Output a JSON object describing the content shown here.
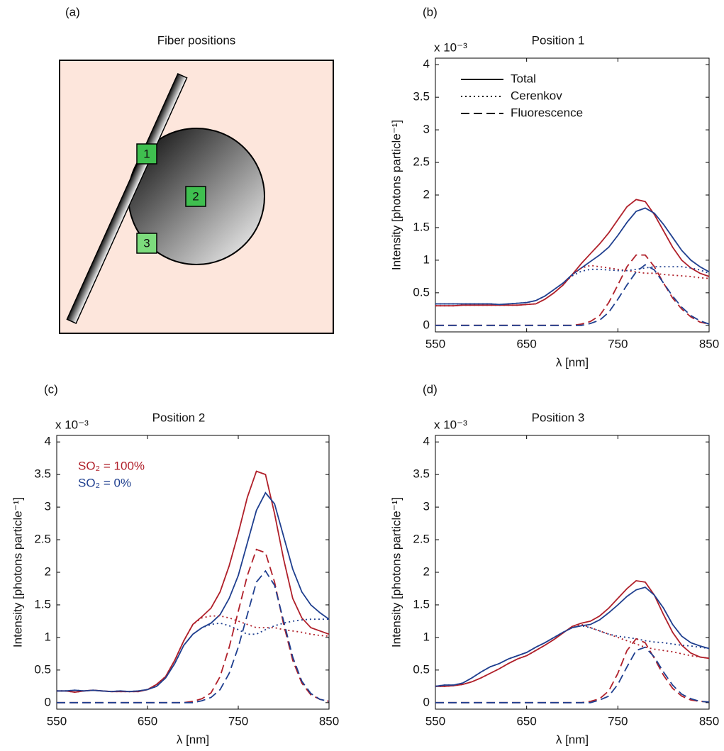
{
  "diagram": {
    "label": "(a)",
    "title": "Fiber positions",
    "markers": [
      "1",
      "2",
      "3"
    ]
  },
  "chart_data": [
    {
      "type": "line",
      "panel_label": "(b)",
      "title": "Position 1",
      "xlabel": "λ [nm]",
      "ylabel": "Intensity [photons particle⁻¹]",
      "y_multiplier": "x 10⁻³",
      "xlim": [
        550,
        850
      ],
      "xticks": [
        550,
        650,
        750,
        850
      ],
      "ylim": [
        -0.1,
        4.1
      ],
      "yticks": [
        0,
        0.5,
        1,
        1.5,
        2,
        2.5,
        3,
        3.5,
        4
      ],
      "legend": [
        {
          "label": "Total",
          "dash": "solid"
        },
        {
          "label": "Cerenkov",
          "dash": "dotted"
        },
        {
          "label": "Fluorescence",
          "dash": "dashed"
        }
      ],
      "x": [
        550,
        560,
        570,
        580,
        590,
        600,
        610,
        620,
        630,
        640,
        650,
        660,
        670,
        680,
        690,
        700,
        710,
        720,
        730,
        740,
        750,
        760,
        770,
        780,
        790,
        800,
        810,
        820,
        830,
        840,
        850
      ],
      "series": [
        {
          "color": "#b0202a",
          "dash": "solid",
          "values": [
            0.3,
            0.3,
            0.3,
            0.31,
            0.31,
            0.31,
            0.31,
            0.31,
            0.31,
            0.31,
            0.32,
            0.33,
            0.4,
            0.5,
            0.62,
            0.78,
            0.95,
            1.1,
            1.25,
            1.42,
            1.62,
            1.82,
            1.93,
            1.9,
            1.7,
            1.45,
            1.2,
            1.0,
            0.88,
            0.8,
            0.75
          ]
        },
        {
          "color": "#1f3f8f",
          "dash": "solid",
          "values": [
            0.33,
            0.33,
            0.33,
            0.33,
            0.33,
            0.33,
            0.33,
            0.32,
            0.33,
            0.34,
            0.35,
            0.38,
            0.45,
            0.55,
            0.65,
            0.78,
            0.88,
            0.98,
            1.08,
            1.2,
            1.38,
            1.58,
            1.75,
            1.8,
            1.72,
            1.55,
            1.35,
            1.15,
            1.0,
            0.9,
            0.82
          ]
        },
        {
          "color": "#b0202a",
          "dash": "dotted",
          "values": [
            0.3,
            0.3,
            0.3,
            0.31,
            0.31,
            0.31,
            0.31,
            0.31,
            0.31,
            0.31,
            0.32,
            0.33,
            0.4,
            0.5,
            0.62,
            0.78,
            0.88,
            0.92,
            0.9,
            0.88,
            0.86,
            0.84,
            0.82,
            0.8,
            0.8,
            0.78,
            0.77,
            0.76,
            0.75,
            0.73,
            0.72
          ]
        },
        {
          "color": "#1f3f8f",
          "dash": "dotted",
          "values": [
            0.33,
            0.33,
            0.33,
            0.33,
            0.33,
            0.33,
            0.33,
            0.32,
            0.33,
            0.34,
            0.35,
            0.38,
            0.45,
            0.55,
            0.65,
            0.76,
            0.83,
            0.86,
            0.86,
            0.85,
            0.84,
            0.84,
            0.86,
            0.88,
            0.9,
            0.9,
            0.9,
            0.9,
            0.88,
            0.85,
            0.8
          ]
        },
        {
          "color": "#b0202a",
          "dash": "dashed",
          "values": [
            0,
            0,
            0,
            0,
            0,
            0,
            0,
            0,
            0,
            0,
            0,
            0,
            0,
            0,
            0,
            0,
            0.02,
            0.06,
            0.15,
            0.35,
            0.62,
            0.9,
            1.08,
            1.08,
            0.9,
            0.65,
            0.42,
            0.25,
            0.13,
            0.05,
            0.02
          ]
        },
        {
          "color": "#1f3f8f",
          "dash": "dashed",
          "values": [
            0,
            0,
            0,
            0,
            0,
            0,
            0,
            0,
            0,
            0,
            0,
            0,
            0,
            0,
            0,
            0,
            0,
            0.03,
            0.08,
            0.2,
            0.4,
            0.62,
            0.82,
            0.93,
            0.85,
            0.65,
            0.45,
            0.28,
            0.15,
            0.07,
            0.02
          ]
        }
      ]
    },
    {
      "type": "line",
      "panel_label": "(c)",
      "title": "Position 2",
      "xlabel": "λ [nm]",
      "ylabel": "Intensity [photons particle⁻¹]",
      "y_multiplier": "x 10⁻³",
      "xlim": [
        550,
        850
      ],
      "xticks": [
        550,
        650,
        750,
        850
      ],
      "ylim": [
        -0.1,
        4.1
      ],
      "yticks": [
        0,
        0.5,
        1,
        1.5,
        2,
        2.5,
        3,
        3.5,
        4
      ],
      "legend": [
        {
          "label": "SO₂ = 100%",
          "color": "#b0202a"
        },
        {
          "label": "SO₂ = 0%",
          "color": "#1f3f8f"
        }
      ],
      "x": [
        550,
        560,
        570,
        580,
        590,
        600,
        610,
        620,
        630,
        640,
        650,
        660,
        670,
        680,
        690,
        700,
        710,
        720,
        730,
        740,
        750,
        760,
        770,
        780,
        790,
        800,
        810,
        820,
        830,
        840,
        850
      ],
      "series": [
        {
          "color": "#b0202a",
          "dash": "solid",
          "values": [
            0.18,
            0.18,
            0.16,
            0.18,
            0.19,
            0.18,
            0.17,
            0.17,
            0.17,
            0.17,
            0.2,
            0.28,
            0.4,
            0.65,
            0.95,
            1.2,
            1.32,
            1.45,
            1.7,
            2.1,
            2.6,
            3.15,
            3.55,
            3.5,
            2.9,
            2.2,
            1.6,
            1.3,
            1.15,
            1.1,
            1.05
          ]
        },
        {
          "color": "#1f3f8f",
          "dash": "solid",
          "values": [
            0.18,
            0.18,
            0.19,
            0.18,
            0.19,
            0.18,
            0.17,
            0.18,
            0.17,
            0.18,
            0.2,
            0.25,
            0.38,
            0.6,
            0.88,
            1.05,
            1.15,
            1.22,
            1.35,
            1.6,
            1.95,
            2.45,
            2.95,
            3.22,
            3.05,
            2.55,
            2.05,
            1.7,
            1.5,
            1.38,
            1.28
          ]
        },
        {
          "color": "#b0202a",
          "dash": "dotted",
          "values": [
            0.18,
            0.18,
            0.16,
            0.18,
            0.19,
            0.18,
            0.17,
            0.17,
            0.17,
            0.17,
            0.2,
            0.28,
            0.4,
            0.65,
            0.95,
            1.2,
            1.3,
            1.33,
            1.33,
            1.3,
            1.25,
            1.2,
            1.15,
            1.15,
            1.15,
            1.12,
            1.1,
            1.08,
            1.05,
            1.03,
            1.02
          ]
        },
        {
          "color": "#1f3f8f",
          "dash": "dotted",
          "values": [
            0.18,
            0.18,
            0.19,
            0.18,
            0.19,
            0.18,
            0.17,
            0.18,
            0.17,
            0.18,
            0.2,
            0.25,
            0.38,
            0.6,
            0.88,
            1.05,
            1.15,
            1.2,
            1.22,
            1.18,
            1.12,
            1.05,
            1.05,
            1.12,
            1.18,
            1.22,
            1.25,
            1.27,
            1.28,
            1.28,
            1.28
          ]
        },
        {
          "color": "#b0202a",
          "dash": "dashed",
          "values": [
            0,
            0,
            0,
            0,
            0,
            0,
            0,
            0,
            0,
            0,
            0,
            0,
            0,
            0,
            0,
            0.02,
            0.06,
            0.15,
            0.4,
            0.85,
            1.4,
            1.95,
            2.35,
            2.3,
            1.85,
            1.2,
            0.65,
            0.3,
            0.12,
            0.05,
            0.02
          ]
        },
        {
          "color": "#1f3f8f",
          "dash": "dashed",
          "values": [
            0,
            0,
            0,
            0,
            0,
            0,
            0,
            0,
            0,
            0,
            0,
            0,
            0,
            0,
            0,
            0,
            0.03,
            0.08,
            0.2,
            0.45,
            0.85,
            1.35,
            1.85,
            2.02,
            1.8,
            1.25,
            0.7,
            0.33,
            0.14,
            0.05,
            0.02
          ]
        }
      ]
    },
    {
      "type": "line",
      "panel_label": "(d)",
      "title": "Position 3",
      "xlabel": "λ [nm]",
      "ylabel": "Intensity [photons particle⁻¹]",
      "y_multiplier": "x 10⁻³",
      "xlim": [
        550,
        850
      ],
      "xticks": [
        550,
        650,
        750,
        850
      ],
      "ylim": [
        -0.1,
        4.1
      ],
      "yticks": [
        0,
        0.5,
        1,
        1.5,
        2,
        2.5,
        3,
        3.5,
        4
      ],
      "x": [
        550,
        560,
        570,
        580,
        590,
        600,
        610,
        620,
        630,
        640,
        650,
        660,
        670,
        680,
        690,
        700,
        710,
        720,
        730,
        740,
        750,
        760,
        770,
        780,
        790,
        800,
        810,
        820,
        830,
        840,
        850
      ],
      "series": [
        {
          "color": "#b0202a",
          "dash": "solid",
          "values": [
            0.25,
            0.25,
            0.26,
            0.28,
            0.32,
            0.38,
            0.45,
            0.52,
            0.6,
            0.67,
            0.72,
            0.8,
            0.88,
            0.97,
            1.07,
            1.17,
            1.22,
            1.25,
            1.33,
            1.45,
            1.6,
            1.75,
            1.87,
            1.85,
            1.65,
            1.35,
            1.08,
            0.88,
            0.76,
            0.7,
            0.68
          ]
        },
        {
          "color": "#1f3f8f",
          "dash": "solid",
          "values": [
            0.25,
            0.27,
            0.27,
            0.3,
            0.38,
            0.47,
            0.55,
            0.6,
            0.67,
            0.72,
            0.77,
            0.85,
            0.92,
            1.0,
            1.08,
            1.15,
            1.18,
            1.2,
            1.27,
            1.38,
            1.5,
            1.63,
            1.73,
            1.77,
            1.65,
            1.45,
            1.2,
            1.02,
            0.92,
            0.87,
            0.83
          ]
        },
        {
          "color": "#b0202a",
          "dash": "dotted",
          "values": [
            0.25,
            0.25,
            0.26,
            0.28,
            0.32,
            0.38,
            0.45,
            0.52,
            0.6,
            0.67,
            0.72,
            0.8,
            0.88,
            0.97,
            1.07,
            1.17,
            1.2,
            1.15,
            1.1,
            1.05,
            1.0,
            0.95,
            0.9,
            0.85,
            0.82,
            0.8,
            0.78,
            0.75,
            0.72,
            0.7,
            0.68
          ]
        },
        {
          "color": "#1f3f8f",
          "dash": "dotted",
          "values": [
            0.25,
            0.27,
            0.27,
            0.3,
            0.38,
            0.47,
            0.55,
            0.6,
            0.67,
            0.72,
            0.77,
            0.85,
            0.92,
            1.0,
            1.08,
            1.15,
            1.18,
            1.15,
            1.1,
            1.05,
            1.02,
            1.0,
            0.98,
            0.95,
            0.93,
            0.92,
            0.9,
            0.88,
            0.87,
            0.85,
            0.83
          ]
        },
        {
          "color": "#b0202a",
          "dash": "dashed",
          "values": [
            0,
            0,
            0,
            0,
            0,
            0,
            0,
            0,
            0,
            0,
            0,
            0,
            0,
            0,
            0,
            0,
            0,
            0.02,
            0.06,
            0.18,
            0.45,
            0.8,
            0.98,
            0.92,
            0.68,
            0.42,
            0.22,
            0.1,
            0.04,
            0.02,
            0.01
          ]
        },
        {
          "color": "#1f3f8f",
          "dash": "dashed",
          "values": [
            0,
            0,
            0,
            0,
            0,
            0,
            0,
            0,
            0,
            0,
            0,
            0,
            0,
            0,
            0,
            0,
            0,
            0,
            0.04,
            0.1,
            0.28,
            0.55,
            0.8,
            0.85,
            0.7,
            0.47,
            0.27,
            0.13,
            0.06,
            0.02,
            0.01
          ]
        }
      ]
    }
  ]
}
